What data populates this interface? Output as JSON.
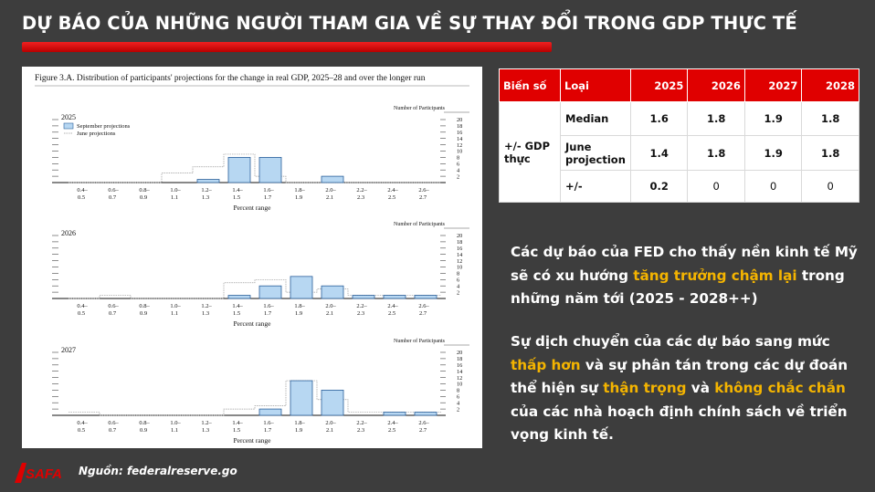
{
  "title": "DỰ BÁO CỦA NHỮNG NGƯỜI THAM GIA VỀ SỰ THAY ĐỔI TRONG GDP THỰC TẾ",
  "figure": {
    "caption": "Figure 3.A. Distribution of participants' projections for the change in real GDP, 2025–28 and over the longer run",
    "y_axis_label": "Number of Participants",
    "x_axis_label": "Percent range",
    "legend": {
      "september": "September projections",
      "june": "June projections"
    },
    "y_ticks": [
      "20",
      "18",
      "16",
      "14",
      "12",
      "10",
      "8",
      "6",
      "4",
      "2"
    ],
    "range_top": [
      "0.4–",
      "0.6–",
      "0.8–",
      "1.0–",
      "1.2–",
      "1.4–",
      "1.6–",
      "1.8–",
      "2.0–",
      "2.2–",
      "2.4–",
      "2.6–"
    ],
    "range_bottom": [
      "0.5",
      "0.7",
      "0.9",
      "1.1",
      "1.3",
      "1.5",
      "1.7",
      "1.9",
      "2.1",
      "2.3",
      "2.5",
      "2.7"
    ]
  },
  "chart_data": [
    {
      "type": "bar",
      "title": "2025",
      "categories": [
        "0.4–0.5",
        "0.6–0.7",
        "0.8–0.9",
        "1.0–1.1",
        "1.2–1.3",
        "1.4–1.5",
        "1.6–1.7",
        "1.8–1.9",
        "2.0–2.1",
        "2.2–2.3",
        "2.4–2.5",
        "2.6–2.7"
      ],
      "series": [
        {
          "name": "September projections",
          "values": [
            0,
            0,
            0,
            0,
            1,
            8,
            8,
            0,
            2,
            0,
            0,
            0
          ]
        },
        {
          "name": "June projections",
          "values": [
            0,
            0,
            0,
            3,
            5,
            9,
            2,
            0,
            0,
            0,
            0,
            0
          ]
        }
      ],
      "xlabel": "Percent range",
      "ylabel": "Number of Participants",
      "ylim": [
        0,
        20
      ]
    },
    {
      "type": "bar",
      "title": "2026",
      "categories": [
        "0.4–0.5",
        "0.6–0.7",
        "0.8–0.9",
        "1.0–1.1",
        "1.2–1.3",
        "1.4–1.5",
        "1.6–1.7",
        "1.8–1.9",
        "2.0–2.1",
        "2.2–2.3",
        "2.4–2.5",
        "2.6–2.7"
      ],
      "series": [
        {
          "name": "September projections",
          "values": [
            0,
            0,
            0,
            0,
            0,
            1,
            4,
            7,
            4,
            1,
            1,
            1
          ]
        },
        {
          "name": "June projections",
          "values": [
            0,
            1,
            0,
            0,
            0,
            5,
            6,
            2,
            3,
            1,
            1,
            1
          ]
        }
      ],
      "xlabel": "Percent range",
      "ylabel": "Number of Participants",
      "ylim": [
        0,
        20
      ]
    },
    {
      "type": "bar",
      "title": "2027",
      "categories": [
        "0.4–0.5",
        "0.6–0.7",
        "0.8–0.9",
        "1.0–1.1",
        "1.2–1.3",
        "1.4–1.5",
        "1.6–1.7",
        "1.8–1.9",
        "2.0–2.1",
        "2.2–2.3",
        "2.4–2.5",
        "2.6–2.7"
      ],
      "series": [
        {
          "name": "September projections",
          "values": [
            0,
            0,
            0,
            0,
            0,
            0,
            2,
            11,
            8,
            0,
            1,
            1
          ]
        },
        {
          "name": "June projections",
          "values": [
            1,
            0,
            0,
            0,
            0,
            2,
            3,
            11,
            5,
            1,
            1,
            1
          ]
        }
      ],
      "xlabel": "Percent range",
      "ylabel": "Number of Participants",
      "ylim": [
        0,
        20
      ]
    }
  ],
  "table": {
    "headers": [
      "Biến số",
      "Loại",
      "2025",
      "2026",
      "2027",
      "2028"
    ],
    "variable": "+/- GDP thực",
    "rows": [
      {
        "type": "Median",
        "values": [
          "1.6",
          "1.8",
          "1.9",
          "1.8"
        ]
      },
      {
        "type": "June projection",
        "values": [
          "1.4",
          "1.8",
          "1.9",
          "1.8"
        ]
      },
      {
        "type": "+/-",
        "values": [
          "0.2",
          "0",
          "0",
          "0"
        ]
      }
    ]
  },
  "paragraph1": {
    "part1": "Các dự báo của FED cho thấy nền kinh tế Mỹ sẽ có xu hướng ",
    "highlight1": "tăng trưởng chậm lại",
    "part2": " trong những năm tới (2025 - 2028++)"
  },
  "paragraph2": {
    "part1": "Sự dịch chuyển của các dự báo sang mức ",
    "highlight1": "thấp hơn",
    "part2": " và sự phân tán trong các dự đoán thể hiện sự ",
    "highlight2": "thận trọng",
    "part3": " và ",
    "highlight3": "không chắc chắn",
    "part4": " của các nhà hoạch định chính sách về triển vọng kinh tế."
  },
  "logo_text": "SAFA",
  "source": "Nguồn: federalreserve.go",
  "colors": {
    "accent_red": "#e00000",
    "highlight": "#f4b400",
    "background": "#3d3d3d",
    "bar_fill": "#b7d7f2",
    "bar_stroke": "#2a5f9a"
  }
}
